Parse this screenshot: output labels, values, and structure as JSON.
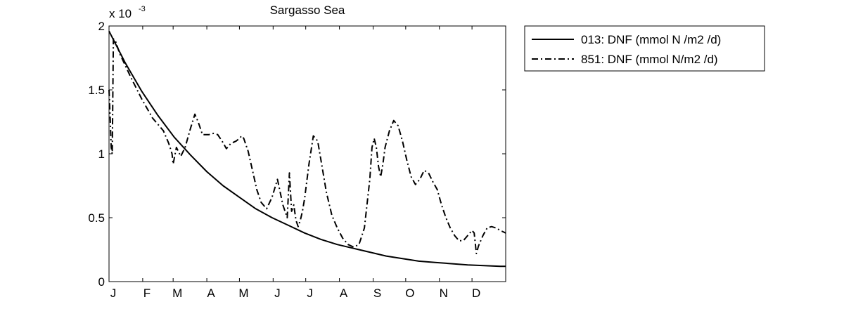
{
  "chart_data": {
    "type": "line",
    "title": "Sargasso Sea",
    "xlabel": "",
    "ylabel": "",
    "y_multiplier": {
      "base": "x 10",
      "exponent": "-3"
    },
    "xlim": [
      0,
      365
    ],
    "ylim": [
      0,
      2
    ],
    "x_ticks": [
      {
        "label": "J",
        "x": 0
      },
      {
        "label": "F",
        "x": 31
      },
      {
        "label": "M",
        "x": 59
      },
      {
        "label": "A",
        "x": 90
      },
      {
        "label": "M",
        "x": 120
      },
      {
        "label": "J",
        "x": 151
      },
      {
        "label": "J",
        "x": 181
      },
      {
        "label": "A",
        "x": 212
      },
      {
        "label": "S",
        "x": 243
      },
      {
        "label": "O",
        "x": 273
      },
      {
        "label": "N",
        "x": 304
      },
      {
        "label": "D",
        "x": 334
      }
    ],
    "y_ticks": [
      {
        "label": "0",
        "y": 0
      },
      {
        "label": "0.5",
        "y": 0.5
      },
      {
        "label": "1",
        "y": 1
      },
      {
        "label": "1.5",
        "y": 1.5
      },
      {
        "label": "2",
        "y": 2
      }
    ],
    "grid": false,
    "legend_position": "outside-right",
    "series": [
      {
        "name": "013: DNF (mmol N /m2 /d)",
        "style": "solid",
        "color": "#000000",
        "x": [
          0,
          15,
          30,
          45,
          60,
          75,
          90,
          105,
          120,
          135,
          150,
          165,
          180,
          195,
          210,
          225,
          240,
          255,
          270,
          285,
          300,
          315,
          330,
          345,
          360,
          365
        ],
        "y": [
          1.96,
          1.71,
          1.49,
          1.3,
          1.13,
          0.99,
          0.86,
          0.75,
          0.66,
          0.57,
          0.5,
          0.44,
          0.38,
          0.33,
          0.29,
          0.26,
          0.23,
          0.2,
          0.18,
          0.16,
          0.15,
          0.14,
          0.13,
          0.125,
          0.12,
          0.12
        ]
      },
      {
        "name": "851: DNF (mmol N/m2 /d)",
        "style": "dash-dot",
        "color": "#000000",
        "x": [
          0,
          1,
          2,
          3,
          4,
          6,
          10,
          20,
          30,
          40,
          50,
          55,
          58,
          59,
          62,
          66,
          70,
          75,
          79,
          82,
          86,
          92,
          96,
          100,
          104,
          108,
          112,
          117,
          120,
          122,
          124,
          128,
          132,
          136,
          140,
          145,
          150,
          155,
          160,
          164,
          166,
          168,
          170,
          172,
          174,
          176,
          178,
          180,
          184,
          188,
          192,
          196,
          200,
          205,
          210,
          215,
          220,
          225,
          230,
          235,
          240,
          242,
          244,
          246,
          248,
          250,
          252,
          254,
          258,
          262,
          266,
          270,
          274,
          278,
          282,
          286,
          290,
          294,
          298,
          302,
          306,
          310,
          314,
          318,
          322,
          326,
          330,
          334,
          336,
          338,
          340,
          344,
          348,
          352,
          356,
          360,
          365
        ],
        "y": [
          1.5,
          1.3,
          1.05,
          1.0,
          1.9,
          1.88,
          1.78,
          1.6,
          1.43,
          1.28,
          1.18,
          1.08,
          1.0,
          0.92,
          1.05,
          0.98,
          1.05,
          1.2,
          1.31,
          1.25,
          1.15,
          1.15,
          1.16,
          1.15,
          1.1,
          1.04,
          1.08,
          1.1,
          1.12,
          1.14,
          1.12,
          1.02,
          0.87,
          0.72,
          0.62,
          0.57,
          0.66,
          0.8,
          0.6,
          0.5,
          0.85,
          0.55,
          0.6,
          0.48,
          0.43,
          0.48,
          0.55,
          0.65,
          0.92,
          1.14,
          1.1,
          0.9,
          0.7,
          0.52,
          0.42,
          0.34,
          0.29,
          0.27,
          0.29,
          0.42,
          0.8,
          1.05,
          1.12,
          1.05,
          0.9,
          0.82,
          0.92,
          1.05,
          1.18,
          1.26,
          1.22,
          1.1,
          0.95,
          0.82,
          0.76,
          0.8,
          0.87,
          0.85,
          0.78,
          0.72,
          0.6,
          0.5,
          0.42,
          0.36,
          0.32,
          0.32,
          0.36,
          0.4,
          0.38,
          0.22,
          0.28,
          0.36,
          0.42,
          0.43,
          0.42,
          0.4,
          0.38
        ]
      }
    ]
  }
}
